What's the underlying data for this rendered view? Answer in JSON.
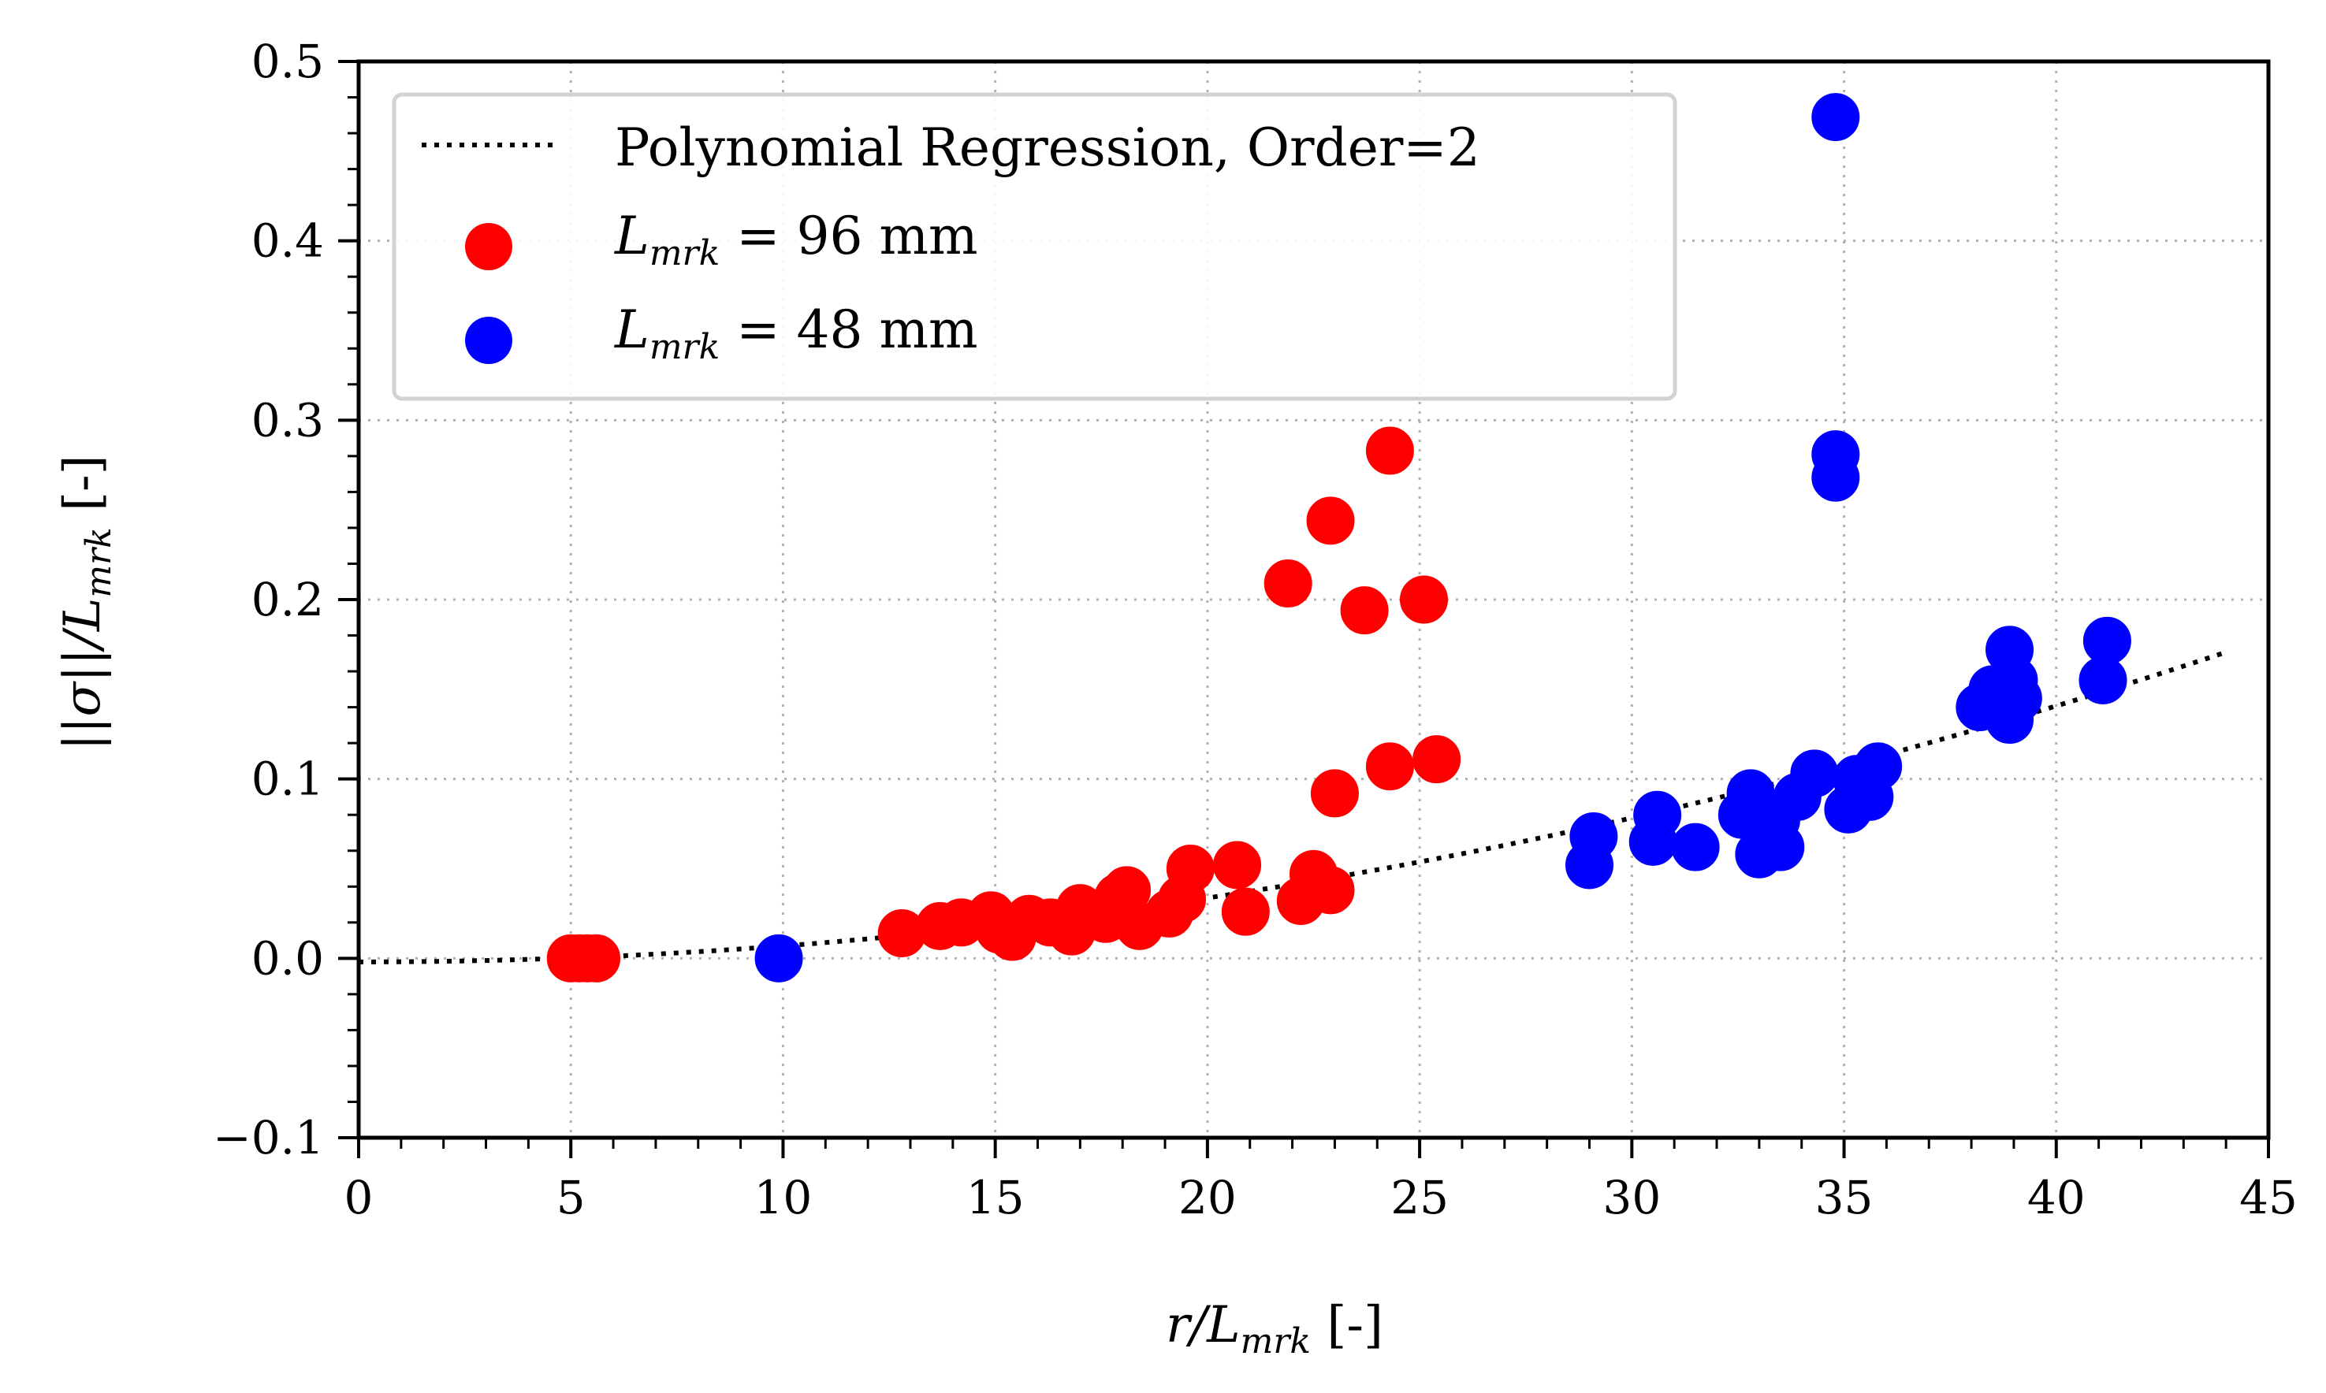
{
  "chart_data": {
    "type": "scatter",
    "title": "",
    "xlabel": "r/L_mrk [-]",
    "ylabel": "||σ||/L_mrk [-]",
    "xlim": [
      0,
      45
    ],
    "ylim": [
      -0.1,
      0.5
    ],
    "grid": true,
    "legend_position": "top-left",
    "x_ticks": [
      0,
      5,
      10,
      15,
      20,
      25,
      30,
      35,
      40,
      45
    ],
    "y_ticks": [
      -0.1,
      0.0,
      0.1,
      0.2,
      0.3,
      0.4,
      0.5
    ],
    "x_tick_labels": [
      "0",
      "5",
      "10",
      "15",
      "20",
      "25",
      "30",
      "35",
      "40",
      "45"
    ],
    "y_tick_labels": [
      "−0.1",
      "0.0",
      "0.1",
      "0.2",
      "0.3",
      "0.4",
      "0.5"
    ],
    "xlabel_parts": {
      "main": "r/L",
      "sub": "mrk",
      "suffix": " [-]"
    },
    "ylabel_parts": {
      "main": "||σ||/L",
      "sub": "mrk",
      "suffix": " [-]"
    },
    "regression": {
      "name": "Polynomial Regression, Order=2",
      "order": 2,
      "coefficients": [
        -0.002,
        0.0,
        8.92e-05
      ],
      "x_range": [
        0,
        44
      ],
      "color": "#000000",
      "style": "dotted"
    },
    "series": [
      {
        "name": "L_mrk = 96 mm",
        "label_main": "L",
        "label_sub": "mrk",
        "label_suffix": " = 96 mm",
        "color": "#ff0000",
        "x": [
          5.0,
          5.2,
          5.4,
          5.6,
          12.8,
          13.7,
          14.2,
          14.9,
          15.1,
          15.4,
          15.8,
          16.3,
          16.8,
          17.0,
          17.6,
          17.9,
          18.1,
          18.4,
          19.1,
          19.4,
          19.6,
          20.7,
          20.9,
          21.9,
          22.2,
          22.5,
          22.9,
          23.0,
          22.9,
          23.7,
          24.3,
          24.3,
          25.1,
          25.4
        ],
        "y": [
          0.0,
          0.0,
          0.0,
          0.0,
          0.014,
          0.018,
          0.02,
          0.024,
          0.016,
          0.012,
          0.022,
          0.02,
          0.015,
          0.028,
          0.022,
          0.034,
          0.038,
          0.018,
          0.025,
          0.033,
          0.05,
          0.052,
          0.026,
          0.209,
          0.032,
          0.047,
          0.038,
          0.092,
          0.244,
          0.194,
          0.283,
          0.107,
          0.2,
          0.111
        ]
      },
      {
        "name": "L_mrk = 48 mm",
        "label_main": "L",
        "label_sub": "mrk",
        "label_suffix": " = 48 mm",
        "color": "#0000ff",
        "x": [
          9.9,
          29.0,
          29.1,
          30.5,
          30.6,
          31.5,
          32.6,
          32.8,
          33.0,
          33.4,
          33.5,
          33.9,
          34.3,
          34.8,
          34.8,
          34.8,
          35.1,
          35.3,
          35.6,
          35.8,
          38.2,
          38.5,
          38.9,
          38.9,
          39.0,
          39.1,
          41.1,
          41.2
        ],
        "y": [
          0.0,
          0.052,
          0.068,
          0.065,
          0.08,
          0.062,
          0.08,
          0.092,
          0.058,
          0.077,
          0.062,
          0.09,
          0.103,
          0.469,
          0.281,
          0.268,
          0.083,
          0.1,
          0.09,
          0.107,
          0.14,
          0.15,
          0.133,
          0.172,
          0.155,
          0.145,
          0.155,
          0.177
        ]
      }
    ]
  }
}
